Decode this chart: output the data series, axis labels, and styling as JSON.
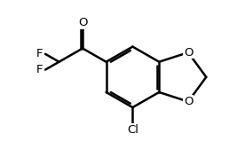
{
  "background_color": "#ffffff",
  "line_color": "#000000",
  "line_width": 1.8,
  "font_size": 9.5,
  "figsize": [
    2.58,
    1.77
  ],
  "dpi": 100,
  "xlim": [
    0,
    10
  ],
  "ylim": [
    0,
    6.87
  ]
}
